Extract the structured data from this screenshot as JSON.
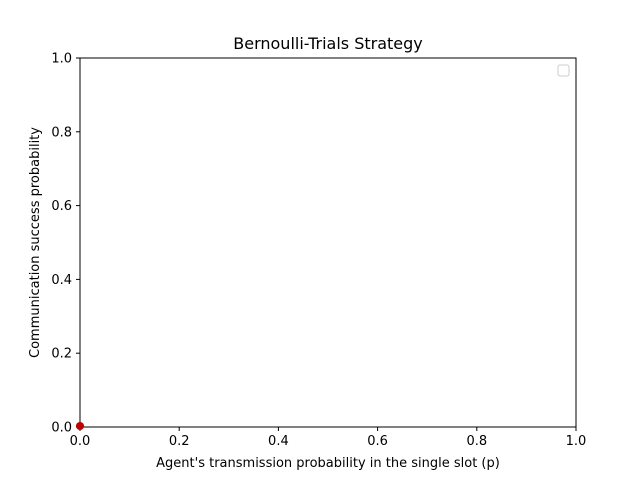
{
  "chart_data": {
    "type": "scatter",
    "title": "Bernoulli-Trials Strategy",
    "xlabel": "Agent's transmission probability in the single slot (p)",
    "ylabel": "Communication success probability",
    "xlim": [
      0.0,
      1.0
    ],
    "ylim": [
      0.0,
      1.0
    ],
    "xticks": [
      "0.0",
      "0.2",
      "0.4",
      "0.6",
      "0.8",
      "1.0"
    ],
    "yticks": [
      "0.0",
      "0.2",
      "0.4",
      "0.6",
      "0.8",
      "1.0"
    ],
    "grid": false,
    "legend": {
      "placement": "top-right",
      "entries": []
    },
    "series": [
      {
        "color": "#c00000",
        "points": [
          {
            "x": 0.0,
            "y": 0.0
          }
        ]
      }
    ]
  }
}
